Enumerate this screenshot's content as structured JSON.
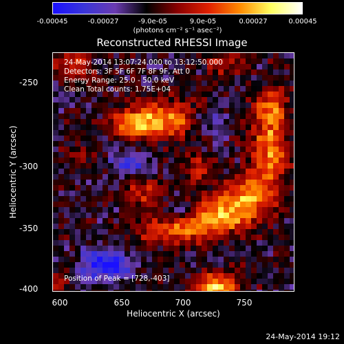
{
  "colorbar": {
    "ticks": [
      "-0.00045",
      "-0.00027",
      "-9.0e-05",
      "9.0e-05",
      "0.00027",
      "0.00045"
    ],
    "units": "(photons cm⁻² s⁻¹ asec⁻²)",
    "colors": [
      "#1a10ff",
      "#3a35d8",
      "#6a3bb0",
      "#000000",
      "#8a0000",
      "#e02000",
      "#ff8a00",
      "#ffff60",
      "#ffffff"
    ]
  },
  "annotations": {
    "time_range": "24-May-2014 13:07:24.000 to 13:12:50.000",
    "detectors": "Detectors: 3F 5F 6F 7F 8F 9F, Att 0",
    "energy": "Energy Range: 25.0 - 50.0 keV",
    "clean": "Clean     Total counts: 1.75E+04",
    "peak": "Position of Peak = [728,-403]"
  },
  "footer": {
    "date": "24-May-2014 19:12"
  },
  "chart_data": {
    "type": "heatmap",
    "title": "Reconstructed RHESSI Image",
    "xlabel": "Heliocentric X (arcsec)",
    "ylabel": "Heliocentric Y (arcsec)",
    "xlim": [
      597,
      790
    ],
    "ylim": [
      -402,
      -210
    ],
    "xticks": [
      600,
      650,
      700,
      750
    ],
    "yticks": [
      -250,
      -300,
      -350,
      -400
    ],
    "zlim": [
      -0.00045,
      0.00045
    ],
    "features": [
      {
        "x": 727,
        "y": -340,
        "sx": 20,
        "sy": 12,
        "amp": 0.00035
      },
      {
        "x": 755,
        "y": -325,
        "sx": 14,
        "sy": 12,
        "amp": 0.0003
      },
      {
        "x": 770,
        "y": -290,
        "sx": 10,
        "sy": 18,
        "amp": 0.00032
      },
      {
        "x": 770,
        "y": -255,
        "sx": 10,
        "sy": 12,
        "amp": 0.00028
      },
      {
        "x": 688,
        "y": -263,
        "sx": 24,
        "sy": 10,
        "amp": 0.00033
      },
      {
        "x": 662,
        "y": -268,
        "sx": 12,
        "sy": 8,
        "amp": 0.00025
      },
      {
        "x": 690,
        "y": -352,
        "sx": 18,
        "sy": 8,
        "amp": 0.00028
      },
      {
        "x": 670,
        "y": -320,
        "sx": 12,
        "sy": 8,
        "amp": 0.00022
      },
      {
        "x": 712,
        "y": -303,
        "sx": 10,
        "sy": 7,
        "amp": 0.0002
      },
      {
        "x": 612,
        "y": -218,
        "sx": 12,
        "sy": 9,
        "amp": 0.00018
      },
      {
        "x": 735,
        "y": -220,
        "sx": 12,
        "sy": 7,
        "amp": 0.00016
      },
      {
        "x": 620,
        "y": -290,
        "sx": 8,
        "sy": 6,
        "amp": 0.00012
      },
      {
        "x": 728,
        "y": -398,
        "sx": 12,
        "sy": 8,
        "amp": 0.00042
      },
      {
        "x": 600,
        "y": -395,
        "sx": 9,
        "sy": 6,
        "amp": 0.00015
      },
      {
        "x": 640,
        "y": -380,
        "sx": 14,
        "sy": 8,
        "amp": -0.00035
      },
      {
        "x": 660,
        "y": -300,
        "sx": 12,
        "sy": 8,
        "amp": -0.0002
      },
      {
        "x": 720,
        "y": -265,
        "sx": 12,
        "sy": 8,
        "amp": -0.00022
      },
      {
        "x": 700,
        "y": -335,
        "sx": 10,
        "sy": 8,
        "amp": -0.00018
      }
    ]
  }
}
